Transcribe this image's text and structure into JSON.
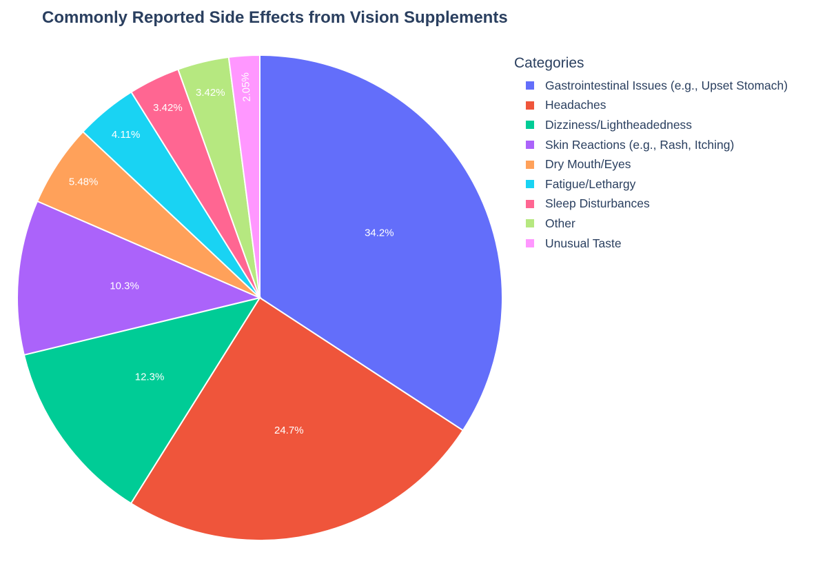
{
  "chart_data": {
    "type": "pie",
    "title": "Commonly Reported Side Effects from Vision Supplements",
    "legend_title": "Categories",
    "legend_position": "top-right",
    "categories": [
      "Gastrointestinal Issues (e.g., Upset Stomach)",
      "Headaches",
      "Dizziness/Lightheadedness",
      "Skin Reactions (e.g., Rash, Itching)",
      "Dry Mouth/Eyes",
      "Fatigue/Lethargy",
      "Sleep Disturbances",
      "Other",
      "Unusual Taste"
    ],
    "values": [
      34.2,
      24.7,
      12.3,
      10.3,
      5.48,
      4.11,
      3.42,
      3.42,
      2.05
    ],
    "labels": [
      "34.2%",
      "24.7%",
      "12.3%",
      "10.3%",
      "5.48%",
      "4.11%",
      "3.42%",
      "3.42%",
      "2.05%"
    ],
    "colors": [
      "#636efa",
      "#ef553b",
      "#00cc96",
      "#ab63fa",
      "#ffa15a",
      "#19d3f3",
      "#ff6692",
      "#b6e880",
      "#ff97ff"
    ],
    "direction": "clockwise",
    "start_angle": "12 o'clock"
  }
}
